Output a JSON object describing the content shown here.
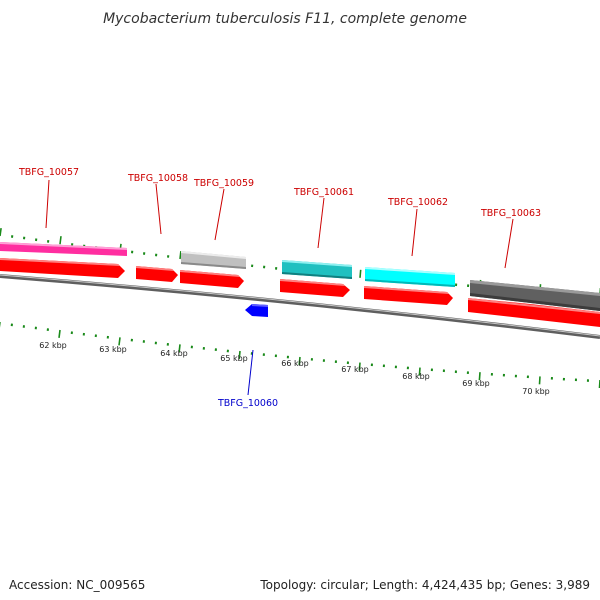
{
  "title": "Mycobacterium tuberculosis F11, complete genome",
  "footer": {
    "accession": "Accession: NC_009565",
    "topology": "Topology: circular; Length: 4,424,435 bp; Genes: 3,989"
  },
  "colors": {
    "tick": "#1a8a1a",
    "backbone": "#808080",
    "cds": "#ff0000",
    "label_forward": "#cc0000",
    "label_reverse": "#0000cc"
  },
  "scale_labels": [
    "62 kbp",
    "63 kbp",
    "64 kbp",
    "65 kbp",
    "66 kbp",
    "67 kbp",
    "68 kbp",
    "69 kbp",
    "70 kbp"
  ],
  "genes": [
    {
      "id": "TBFG_10057",
      "strand": "forward",
      "feature_color": "#ff2ea0"
    },
    {
      "id": "TBFG_10058",
      "strand": "forward",
      "feature_color": ""
    },
    {
      "id": "TBFG_10059",
      "strand": "forward",
      "feature_color": "#c0c0c0"
    },
    {
      "id": "TBFG_10060",
      "strand": "reverse",
      "feature_color": "#0000ff"
    },
    {
      "id": "TBFG_10061",
      "strand": "forward",
      "feature_color": "#20c0c0"
    },
    {
      "id": "TBFG_10062",
      "strand": "forward",
      "feature_color": "#00ffff"
    },
    {
      "id": "TBFG_10063",
      "strand": "forward",
      "feature_color": "#606060"
    }
  ]
}
